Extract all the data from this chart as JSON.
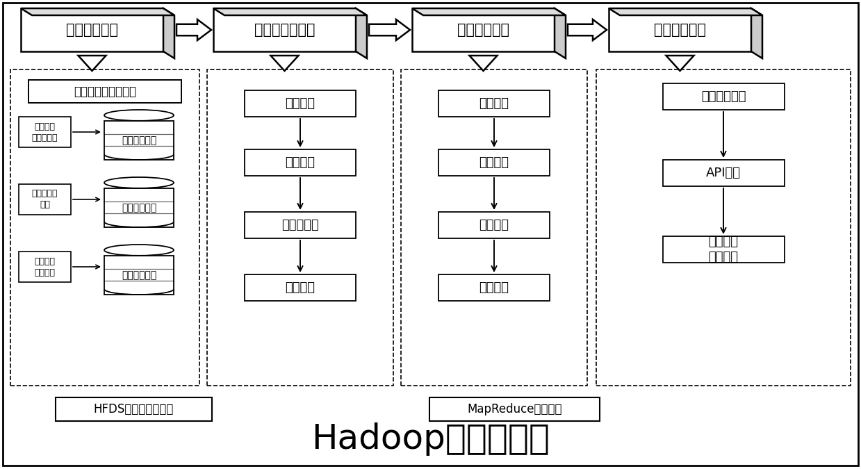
{
  "title": "Hadoop大数据平台",
  "title_fontsize": 36,
  "bg_color": "#ffffff",
  "top_modules": [
    "数据收集模块",
    "数据预处理模块",
    "模型构建模块",
    "沉降预测模块"
  ],
  "col1_header": "确定数据范围、存储",
  "col1_left_items": [
    "施工载荷\n施加与消除",
    "空隙水压力\n升降",
    "土体结构\n直接破坏"
  ],
  "col1_db_labels": [
    "机器运行数据",
    "施工地质数据",
    "施工环境数据"
  ],
  "col2_boxes": [
    "清洗处理",
    "去噪处理",
    "归一化处理",
    "降维处理"
  ],
  "col3_boxes": [
    "读取数据",
    "定义函数",
    "迭代计算",
    "模型输出"
  ],
  "col4_top": "地面沉降模型",
  "col4_boxes": [
    "API封装",
    "应用模型\n预测沉降"
  ],
  "bottom_box1": "HFDS分布式文件系统",
  "bottom_box2": "MapReduce计算框架"
}
